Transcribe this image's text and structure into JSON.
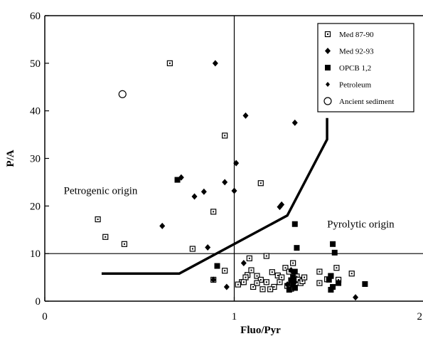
{
  "chart_data": {
    "type": "scatter",
    "xlabel": "Fluo/Pyr",
    "ylabel": "P/A",
    "xlim": [
      0,
      2
    ],
    "ylim": [
      0,
      60
    ],
    "x_ticks": [
      0,
      1,
      2
    ],
    "y_ticks": [
      0,
      10,
      20,
      30,
      40,
      50,
      60
    ],
    "x_tick_labels": [
      "0",
      "1",
      "2"
    ],
    "y_tick_labels": [
      "0",
      "10",
      "20",
      "30",
      "40",
      "50",
      "60"
    ],
    "grid": false,
    "legend_position": "top-right",
    "reference_lines": {
      "x": 1,
      "y": 10
    },
    "annotations": [
      {
        "text": "Petrogenic origin",
        "x": 0.1,
        "y": 22.5
      },
      {
        "text": "Pyrolytic origin",
        "x": 1.49,
        "y": 15.5
      }
    ],
    "boundary_line": {
      "x": [
        0.3,
        0.71,
        1.28,
        1.49,
        1.49
      ],
      "y": [
        5.8,
        5.8,
        18,
        34,
        38.5
      ]
    },
    "series": [
      {
        "name": "Med 87-90",
        "marker": "dotted-square",
        "x": [
          0.66,
          0.95,
          1.14,
          0.89,
          0.28,
          0.32,
          0.42,
          0.78,
          0.95,
          1.07,
          1.08,
          1.17,
          1.04,
          1.06,
          1.09,
          1.12,
          1.14,
          1.17,
          1.2,
          1.23,
          1.25,
          1.27,
          1.29,
          1.31,
          1.33,
          1.34,
          1.35,
          1.36,
          1.37,
          1.32,
          1.28,
          1.24,
          1.21,
          1.15,
          1.1,
          1.05,
          1.02,
          1.12,
          1.19,
          1.3,
          1.45,
          1.51,
          1.54,
          1.62,
          1.55,
          1.49,
          1.45,
          0.89
        ],
        "y": [
          50,
          34.8,
          24.8,
          18.8,
          17.2,
          13.5,
          12,
          11,
          6.4,
          5.5,
          9,
          9.5,
          4,
          5,
          6.5,
          5.3,
          4.5,
          4,
          6.1,
          5.4,
          5,
          7,
          6.2,
          8,
          5.2,
          4.5,
          3.8,
          4.2,
          5,
          2.8,
          3.2,
          4,
          3,
          2.5,
          3,
          4,
          3.5,
          3.8,
          2.5,
          2.6,
          6.2,
          5.3,
          7,
          5.8,
          4.5,
          4.6,
          3.8,
          4.5
        ]
      },
      {
        "name": "Med 92-93",
        "marker": "diamond",
        "x": [
          0.9,
          1.06,
          1.32,
          1.01,
          0.72,
          0.95,
          0.84,
          0.79,
          1.0,
          0.62,
          0.86,
          1.24,
          1.25,
          0.89,
          0.96,
          1.05,
          1.3,
          1.32,
          1.28,
          1.64
        ],
        "y": [
          50,
          39,
          37.5,
          29,
          26,
          25,
          23,
          22,
          23.2,
          15.8,
          11.3,
          19.8,
          20.3,
          4.5,
          3,
          8,
          6.5,
          4,
          3.5,
          0.8
        ]
      },
      {
        "name": "OPCB 1,2",
        "marker": "filled-square",
        "x": [
          0.7,
          0.91,
          1.32,
          1.33,
          1.32,
          1.31,
          1.3,
          1.31,
          1.29,
          1.32,
          1.52,
          1.53,
          1.51,
          1.5,
          1.52,
          1.51,
          1.55,
          1.69
        ],
        "y": [
          25.5,
          7.4,
          16.2,
          11.2,
          6.2,
          5,
          4.4,
          3.5,
          2.4,
          2.8,
          12,
          10.2,
          5.3,
          4.5,
          3,
          2.4,
          3.8,
          3.6
        ]
      },
      {
        "name": "Petroleum",
        "marker": "small-diamond",
        "x": [],
        "y": []
      },
      {
        "name": "Ancient sediment",
        "marker": "open-circle",
        "x": [
          0.41
        ],
        "y": [
          43.5
        ]
      }
    ]
  }
}
